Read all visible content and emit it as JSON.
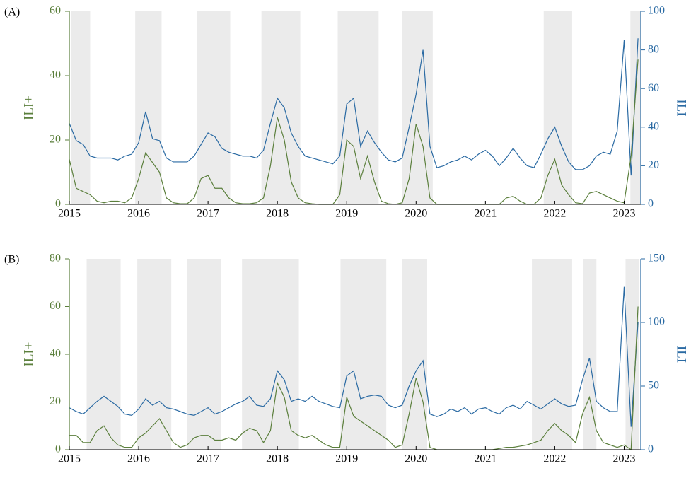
{
  "chart_data": [
    {
      "type": "line",
      "label": "(A)",
      "y_label": "ILI+",
      "y2_label": "ILI",
      "xlim": [
        2015,
        2023.24
      ],
      "xticks": [
        2015,
        2016,
        2017,
        2018,
        2019,
        2020,
        2021,
        2022,
        2023
      ],
      "ylim": [
        0,
        60
      ],
      "yticks": [
        0,
        20,
        40,
        60
      ],
      "y2lim": [
        0,
        100
      ],
      "y2ticks": [
        0,
        20,
        40,
        60,
        80,
        100
      ],
      "shade_color": "#ebebeb",
      "shaded_periods": [
        [
          2015.02,
          2015.3
        ],
        [
          2015.95,
          2016.33
        ],
        [
          2016.84,
          2017.32
        ],
        [
          2017.77,
          2018.33
        ],
        [
          2018.87,
          2019.46
        ],
        [
          2019.8,
          2020.24
        ],
        [
          2021.84,
          2022.25
        ],
        [
          2023.09,
          2023.24
        ]
      ],
      "x": [
        2015.0,
        2015.1,
        2015.2,
        2015.3,
        2015.4,
        2015.5,
        2015.6,
        2015.7,
        2015.8,
        2015.9,
        2016.0,
        2016.1,
        2016.2,
        2016.3,
        2016.4,
        2016.5,
        2016.6,
        2016.7,
        2016.8,
        2016.9,
        2017.0,
        2017.1,
        2017.2,
        2017.3,
        2017.4,
        2017.5,
        2017.6,
        2017.7,
        2017.8,
        2017.9,
        2018.0,
        2018.1,
        2018.2,
        2018.3,
        2018.4,
        2018.5,
        2018.6,
        2018.7,
        2018.8,
        2018.9,
        2019.0,
        2019.1,
        2019.2,
        2019.3,
        2019.4,
        2019.5,
        2019.6,
        2019.7,
        2019.8,
        2019.9,
        2020.0,
        2020.1,
        2020.2,
        2020.3,
        2020.4,
        2020.5,
        2020.6,
        2020.7,
        2020.8,
        2020.9,
        2021.0,
        2021.1,
        2021.2,
        2021.3,
        2021.4,
        2021.5,
        2021.6,
        2021.7,
        2021.8,
        2021.9,
        2022.0,
        2022.1,
        2022.2,
        2022.3,
        2022.4,
        2022.5,
        2022.6,
        2022.7,
        2022.8,
        2022.9,
        2023.0,
        2023.1,
        2023.2
      ],
      "series": [
        {
          "name": "ILI",
          "axis": "y2",
          "color": "#2a6aa3",
          "values": [
            42,
            33,
            31,
            25,
            24,
            24,
            24,
            23,
            25,
            26,
            32,
            48,
            34,
            33,
            24,
            22,
            22,
            22,
            25,
            31,
            37,
            35,
            29,
            27,
            26,
            25,
            25,
            24,
            28,
            42,
            55,
            50,
            37,
            30,
            25,
            24,
            23,
            22,
            21,
            25,
            52,
            55,
            30,
            38,
            32,
            27,
            23,
            22,
            24,
            40,
            57,
            80,
            30,
            19,
            20,
            22,
            23,
            25,
            23,
            26,
            28,
            25,
            20,
            24,
            29,
            24,
            20,
            19,
            26,
            34,
            40,
            30,
            22,
            18,
            18,
            20,
            25,
            27,
            26,
            38,
            85,
            15,
            86
          ]
        },
        {
          "name": "ILI+",
          "color": "#5b7f3c",
          "values": [
            14,
            5,
            4,
            3,
            1,
            0.5,
            1,
            1,
            0.5,
            2,
            8,
            16,
            13,
            10,
            2,
            0.5,
            0.2,
            0.2,
            2,
            8,
            9,
            5,
            5,
            2,
            0.5,
            0.2,
            0.2,
            0.5,
            2,
            12,
            27,
            20,
            7,
            2,
            0.5,
            0.2,
            0,
            0,
            0,
            3,
            20,
            18,
            8,
            15,
            7,
            1,
            0.2,
            0,
            0.5,
            8,
            25,
            18,
            2,
            0,
            0,
            0,
            0,
            0,
            0,
            0,
            0,
            0,
            0,
            2,
            2.5,
            1,
            0,
            0,
            2,
            9,
            14,
            6,
            3,
            0.5,
            0.2,
            3.5,
            4,
            3,
            2,
            1,
            0.5,
            15,
            45
          ]
        }
      ]
    },
    {
      "type": "line",
      "label": "(B)",
      "y_label": "ILI+",
      "y2_label": "ILI",
      "xlim": [
        2015,
        2023.24
      ],
      "xticks": [
        2015,
        2016,
        2017,
        2018,
        2019,
        2020,
        2021,
        2022,
        2023
      ],
      "ylim": [
        0,
        80
      ],
      "yticks": [
        0,
        20,
        40,
        60,
        80
      ],
      "y2lim": [
        0,
        150
      ],
      "y2ticks": [
        0,
        50,
        100,
        150
      ],
      "shade_color": "#ebebeb",
      "shaded_periods": [
        [
          2015.25,
          2015.74
        ],
        [
          2015.98,
          2016.47
        ],
        [
          2016.7,
          2017.19
        ],
        [
          2017.49,
          2018.31
        ],
        [
          2018.91,
          2019.57
        ],
        [
          2019.8,
          2020.16
        ],
        [
          2021.67,
          2022.25
        ],
        [
          2022.41,
          2022.6
        ],
        [
          2023.02,
          2023.22
        ]
      ],
      "x": [
        2015.0,
        2015.1,
        2015.2,
        2015.3,
        2015.4,
        2015.5,
        2015.6,
        2015.7,
        2015.8,
        2015.9,
        2016.0,
        2016.1,
        2016.2,
        2016.3,
        2016.4,
        2016.5,
        2016.6,
        2016.7,
        2016.8,
        2016.9,
        2017.0,
        2017.1,
        2017.2,
        2017.3,
        2017.4,
        2017.5,
        2017.6,
        2017.7,
        2017.8,
        2017.9,
        2018.0,
        2018.1,
        2018.2,
        2018.3,
        2018.4,
        2018.5,
        2018.6,
        2018.7,
        2018.8,
        2018.9,
        2019.0,
        2019.1,
        2019.2,
        2019.3,
        2019.4,
        2019.5,
        2019.6,
        2019.7,
        2019.8,
        2019.9,
        2020.0,
        2020.1,
        2020.2,
        2020.3,
        2020.4,
        2020.5,
        2020.6,
        2020.7,
        2020.8,
        2020.9,
        2021.0,
        2021.1,
        2021.2,
        2021.3,
        2021.4,
        2021.5,
        2021.6,
        2021.7,
        2021.8,
        2021.9,
        2022.0,
        2022.1,
        2022.2,
        2022.3,
        2022.4,
        2022.5,
        2022.6,
        2022.7,
        2022.8,
        2022.9,
        2023.0,
        2023.1,
        2023.2
      ],
      "series": [
        {
          "name": "ILI",
          "axis": "y2",
          "color": "#2a6aa3",
          "values": [
            33,
            30,
            28,
            33,
            38,
            42,
            38,
            34,
            28,
            27,
            32,
            40,
            35,
            38,
            33,
            32,
            30,
            28,
            27,
            30,
            33,
            28,
            30,
            33,
            36,
            38,
            42,
            35,
            34,
            40,
            62,
            55,
            38,
            40,
            38,
            42,
            38,
            36,
            34,
            33,
            58,
            62,
            40,
            42,
            43,
            42,
            35,
            33,
            35,
            50,
            62,
            70,
            28,
            26,
            28,
            32,
            30,
            33,
            28,
            32,
            33,
            30,
            28,
            33,
            35,
            32,
            38,
            35,
            32,
            36,
            40,
            36,
            34,
            35,
            55,
            72,
            38,
            33,
            30,
            30,
            128,
            18,
            100
          ]
        },
        {
          "name": "ILI+",
          "color": "#5b7f3c",
          "values": [
            6,
            6,
            3,
            3,
            8,
            10,
            5,
            2,
            1,
            1,
            5,
            7,
            10,
            13,
            8,
            3,
            1,
            2,
            5,
            6,
            6,
            4,
            4,
            5,
            4,
            7,
            9,
            8,
            3,
            8,
            28,
            22,
            8,
            6,
            5,
            6,
            4,
            2,
            1,
            1,
            22,
            14,
            12,
            10,
            8,
            6,
            4,
            1,
            2,
            15,
            30,
            20,
            1,
            0,
            0,
            0,
            0,
            0,
            0,
            0,
            0,
            0,
            0.5,
            1,
            1,
            1.5,
            2,
            3,
            4,
            8,
            11,
            8,
            6,
            3,
            15,
            22,
            8,
            3,
            2,
            1,
            2,
            0,
            60
          ]
        }
      ]
    }
  ]
}
